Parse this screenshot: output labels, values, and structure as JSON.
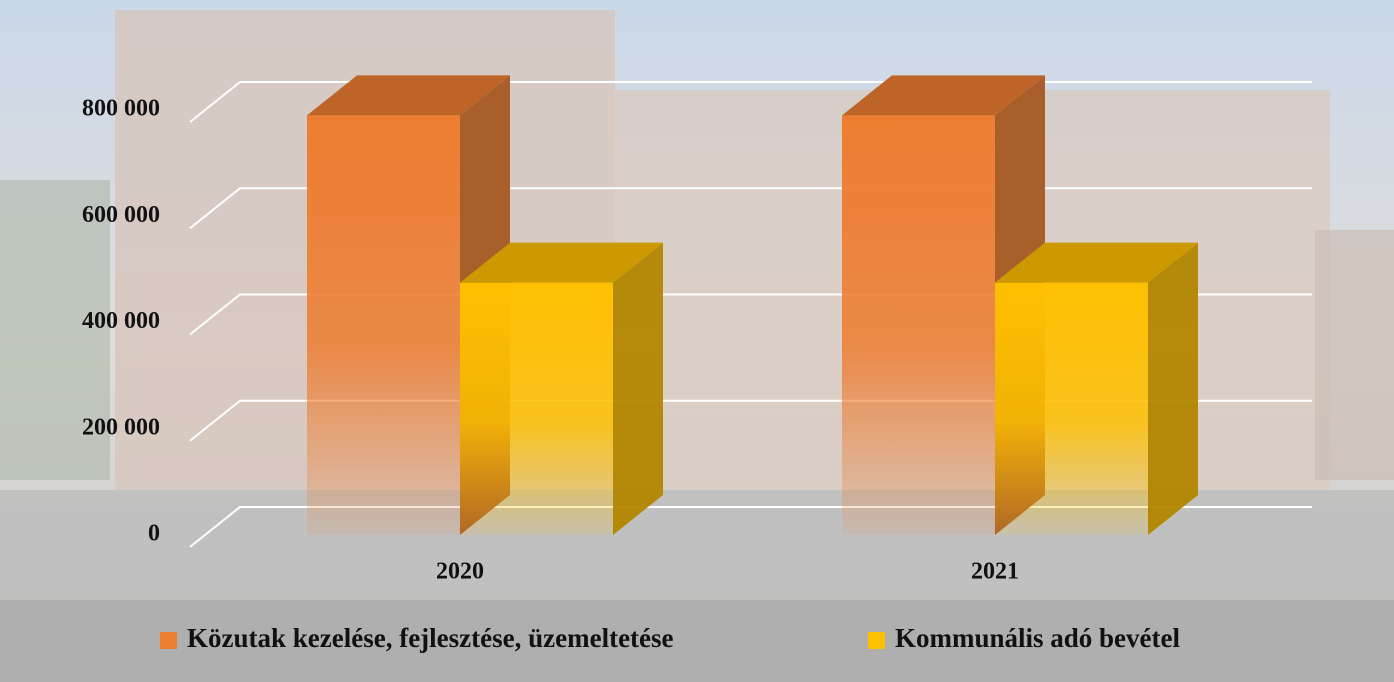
{
  "chart_data": {
    "type": "bar3d",
    "categories": [
      "2020",
      "2021"
    ],
    "series": [
      {
        "name": "Közutak kezelése, fejlesztése, üzemeltetése",
        "color": "#ed7d31",
        "values": [
          790000,
          790000
        ]
      },
      {
        "name": "Kommunális adó bevétel",
        "color": "#ffc000",
        "values": [
          475000,
          475000
        ]
      }
    ],
    "ylim": [
      0,
      800000
    ],
    "yticks": [
      0,
      {
        "value": 200000,
        "label": "200 000"
      },
      {
        "value": 400000,
        "label": "400 000"
      },
      {
        "value": 600000,
        "label": "600 000"
      },
      {
        "value": 800000,
        "label": "800 000"
      }
    ],
    "grid": true,
    "legend": "bottom"
  }
}
